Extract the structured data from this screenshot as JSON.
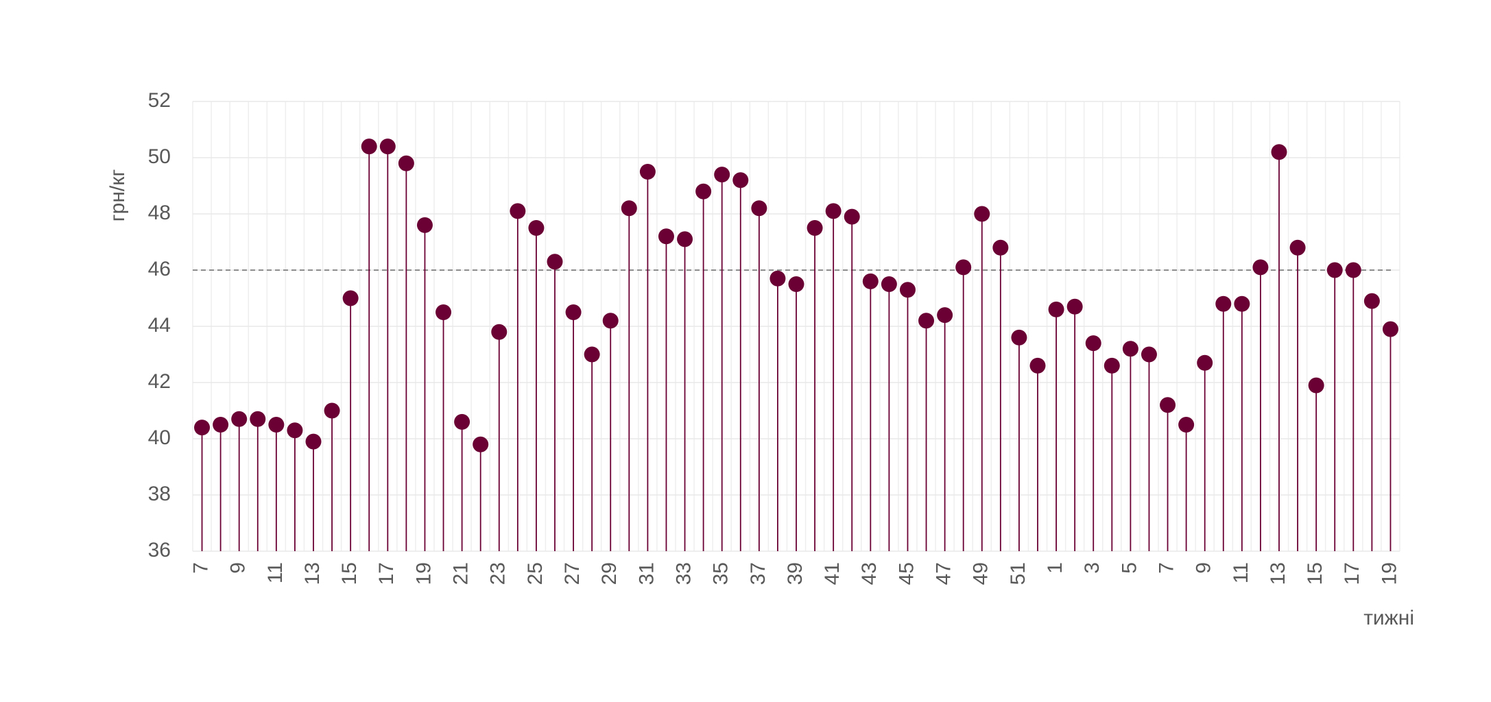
{
  "chart_data": {
    "type": "lollipop",
    "y_label": "грн/кг",
    "x_label": "тижні",
    "categories": [
      "7",
      null,
      "9",
      null,
      "11",
      null,
      "13",
      null,
      "15",
      null,
      "17",
      null,
      "19",
      null,
      "21",
      null,
      "23",
      null,
      "25",
      null,
      "27",
      null,
      "29",
      null,
      "31",
      null,
      "33",
      null,
      "35",
      null,
      "37",
      null,
      "39",
      null,
      "41",
      null,
      "43",
      null,
      "45",
      null,
      "47",
      null,
      "49",
      null,
      "51",
      null,
      "1",
      null,
      "3",
      null,
      "5",
      null,
      "7",
      null,
      "9",
      null,
      "11",
      null,
      "13",
      null,
      "15",
      null,
      "17",
      null,
      "19"
    ],
    "values": [
      40.4,
      40.5,
      40.7,
      40.7,
      40.5,
      40.3,
      39.9,
      41.0,
      45.0,
      50.4,
      50.4,
      49.8,
      47.6,
      44.5,
      40.6,
      39.8,
      43.8,
      48.1,
      47.5,
      46.3,
      44.5,
      43.0,
      44.2,
      48.2,
      49.5,
      47.2,
      47.1,
      48.8,
      49.4,
      49.2,
      48.2,
      45.7,
      45.5,
      47.5,
      48.1,
      47.9,
      45.6,
      45.5,
      45.3,
      44.2,
      44.4,
      46.1,
      48.0,
      46.8,
      43.6,
      42.6,
      44.6,
      44.7,
      43.4,
      42.6,
      43.2,
      43.0,
      41.2,
      40.5,
      42.7,
      44.8,
      44.8,
      46.1,
      50.2,
      46.8,
      41.9,
      46.0,
      46.0,
      44.9,
      43.9
    ],
    "color": "#6a0033",
    "reference_line": 46,
    "ylim": [
      36,
      52
    ],
    "yticks": [
      36,
      38,
      40,
      42,
      44,
      46,
      48,
      50,
      52
    ],
    "grid": true
  }
}
